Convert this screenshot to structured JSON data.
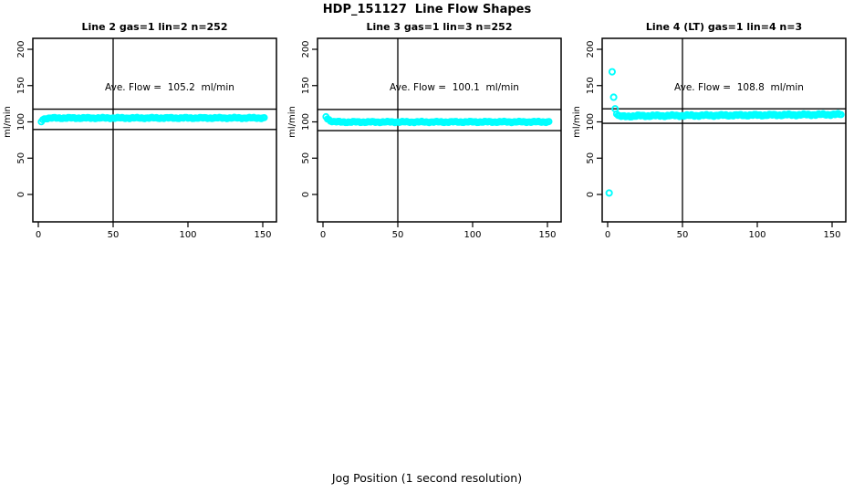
{
  "page": {
    "title": "HDP_151127  Line Flow Shapes",
    "xlabel": "Jog Position (1 second resolution)"
  },
  "style": {
    "point_color": "#00FFFF",
    "axis_color": "#000000",
    "background": "#FFFFFF"
  },
  "chart_data": [
    {
      "type": "scatter",
      "panel_title": "Line 2 gas=1 lin=2 n=252",
      "annotation": "Ave. Flow =  105.2  ml/min",
      "ave_flow_ml_min": 105.2,
      "n": 252,
      "ylabel": "ml/min",
      "xticks": [
        0,
        50,
        100,
        150
      ],
      "yticks": [
        0,
        50,
        100,
        150,
        200
      ],
      "xlim": [
        0,
        155
      ],
      "ylim": [
        0,
        200
      ],
      "grid": false,
      "legend": "none",
      "vline_x": 50,
      "ref_lines_y": [
        117.5,
        89.5
      ],
      "x_start": 2,
      "x_end": 151,
      "series_profile": [
        [
          2,
          100.5
        ],
        [
          3,
          103.5
        ],
        [
          5,
          104.8
        ],
        [
          10,
          105.3
        ],
        [
          151,
          105.4
        ]
      ],
      "jitter": 1.0,
      "outliers": []
    },
    {
      "type": "scatter",
      "panel_title": "Line 3 gas=1 lin=3 n=252",
      "annotation": "Ave. Flow =  100.1  ml/min",
      "ave_flow_ml_min": 100.1,
      "n": 252,
      "ylabel": "ml/min",
      "xticks": [
        0,
        50,
        100,
        150
      ],
      "yticks": [
        0,
        50,
        100,
        150,
        200
      ],
      "xlim": [
        0,
        155
      ],
      "ylim": [
        0,
        200
      ],
      "grid": false,
      "legend": "none",
      "vline_x": 50,
      "ref_lines_y": [
        117.0,
        88.0
      ],
      "x_start": 2,
      "x_end": 151,
      "series_profile": [
        [
          2,
          107.5
        ],
        [
          3,
          104.5
        ],
        [
          5,
          101.5
        ],
        [
          7,
          100.3
        ],
        [
          12,
          99.8
        ],
        [
          151,
          100.0
        ]
      ],
      "jitter": 1.0,
      "outliers": []
    },
    {
      "type": "scatter",
      "panel_title": "Line 4 (LT) gas=1 lin=4 n=3",
      "annotation": "Ave. Flow =  108.8  ml/min",
      "ave_flow_ml_min": 108.8,
      "n": 3,
      "ylabel": "ml/min",
      "xticks": [
        0,
        50,
        100,
        150
      ],
      "yticks": [
        0,
        50,
        100,
        150,
        200
      ],
      "xlim": [
        0,
        155
      ],
      "ylim": [
        0,
        200
      ],
      "grid": false,
      "legend": "none",
      "vline_x": 50,
      "ref_lines_y": [
        118.0,
        98.0
      ],
      "x_start": 6,
      "x_end": 156,
      "series_profile": [
        [
          6,
          112
        ],
        [
          7,
          108.5
        ],
        [
          10,
          107.3
        ],
        [
          20,
          108.3
        ],
        [
          60,
          108.8
        ],
        [
          100,
          109.3
        ],
        [
          130,
          109.8
        ],
        [
          156,
          110.3
        ]
      ],
      "jitter": 1.4,
      "outliers": [
        [
          1,
          2
        ],
        [
          3,
          169
        ],
        [
          4,
          134
        ],
        [
          5,
          118
        ]
      ]
    }
  ]
}
